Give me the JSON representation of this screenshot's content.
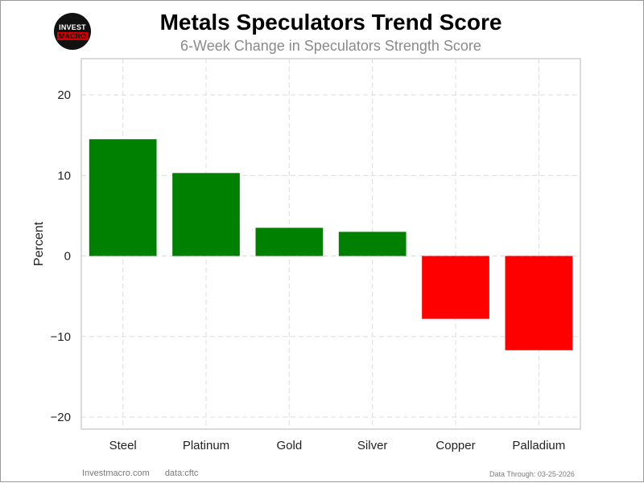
{
  "logo": {
    "line1": "INVEST",
    "line2": "MACRO"
  },
  "header": {
    "title": "Metals Speculators Trend Score",
    "subtitle": "6-Week Change in Speculators Strength Score"
  },
  "footer": {
    "site": "Investmacro.com",
    "source": "data:cftc",
    "data_through": "Data Through: 03-25-2026"
  },
  "colors": {
    "positive": "#008000",
    "negative": "#ff0000"
  },
  "chart_data": {
    "type": "bar",
    "title": "Metals Speculators Trend Score",
    "subtitle": "6-Week Change in Speculators Strength Score",
    "xlabel": "",
    "ylabel": "Percent",
    "categories": [
      "Steel",
      "Platinum",
      "Gold",
      "Silver",
      "Copper",
      "Palladium"
    ],
    "values": [
      14.5,
      10.3,
      3.5,
      3.0,
      -7.8,
      -11.7
    ],
    "ylim": [
      -21.5,
      24.5
    ],
    "yticks": [
      20,
      10,
      0,
      -10,
      -20
    ],
    "ytick_labels": [
      "20",
      "10",
      "0",
      "−10",
      "−20"
    ],
    "grid": true
  }
}
